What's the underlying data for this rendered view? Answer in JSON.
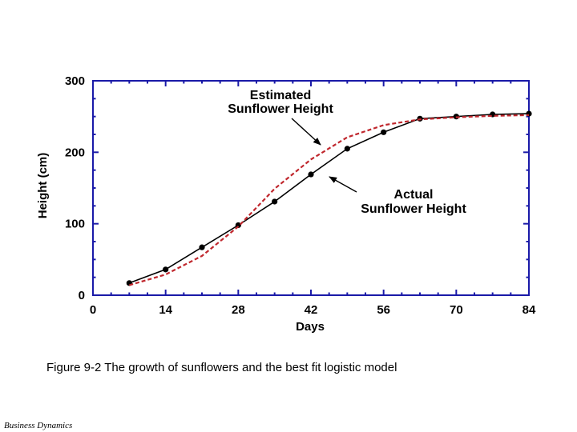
{
  "caption": "Figure 9-2 The growth of sunflowers and the best fit logistic model",
  "footer": "Business Dynamics",
  "chart_data": {
    "type": "line",
    "title": "",
    "xlabel": "Days",
    "ylabel": "Height (cm)",
    "xlim": [
      0,
      84
    ],
    "ylim": [
      0,
      300
    ],
    "xticks": [
      "0",
      "14",
      "28",
      "42",
      "56",
      "70",
      "84"
    ],
    "yticks": [
      "0",
      "100",
      "200",
      "300"
    ],
    "grid": false,
    "colors": {
      "actual": "#000000",
      "estimated": "#c0272d",
      "frame": "#1a1aa8"
    },
    "annotations": [
      {
        "lines": [
          "Estimated",
          "Sunflower Height"
        ],
        "target": "estimated"
      },
      {
        "lines": [
          "Actual",
          "Sunflower Height"
        ],
        "target": "actual"
      }
    ],
    "series": [
      {
        "key": "actual",
        "style": "solid-with-markers",
        "x": [
          7,
          14,
          21,
          28,
          35,
          42,
          49,
          56,
          63,
          70,
          77,
          84
        ],
        "y": [
          17,
          36,
          67,
          98,
          131,
          169,
          205,
          228,
          247,
          250,
          253,
          254
        ]
      },
      {
        "key": "estimated",
        "style": "dashed",
        "x": [
          7,
          14,
          21,
          28,
          35,
          42,
          49,
          56,
          63,
          70,
          77,
          84
        ],
        "y": [
          14,
          29,
          55,
          96,
          149,
          190,
          221,
          238,
          246,
          249,
          251,
          252
        ]
      }
    ]
  }
}
